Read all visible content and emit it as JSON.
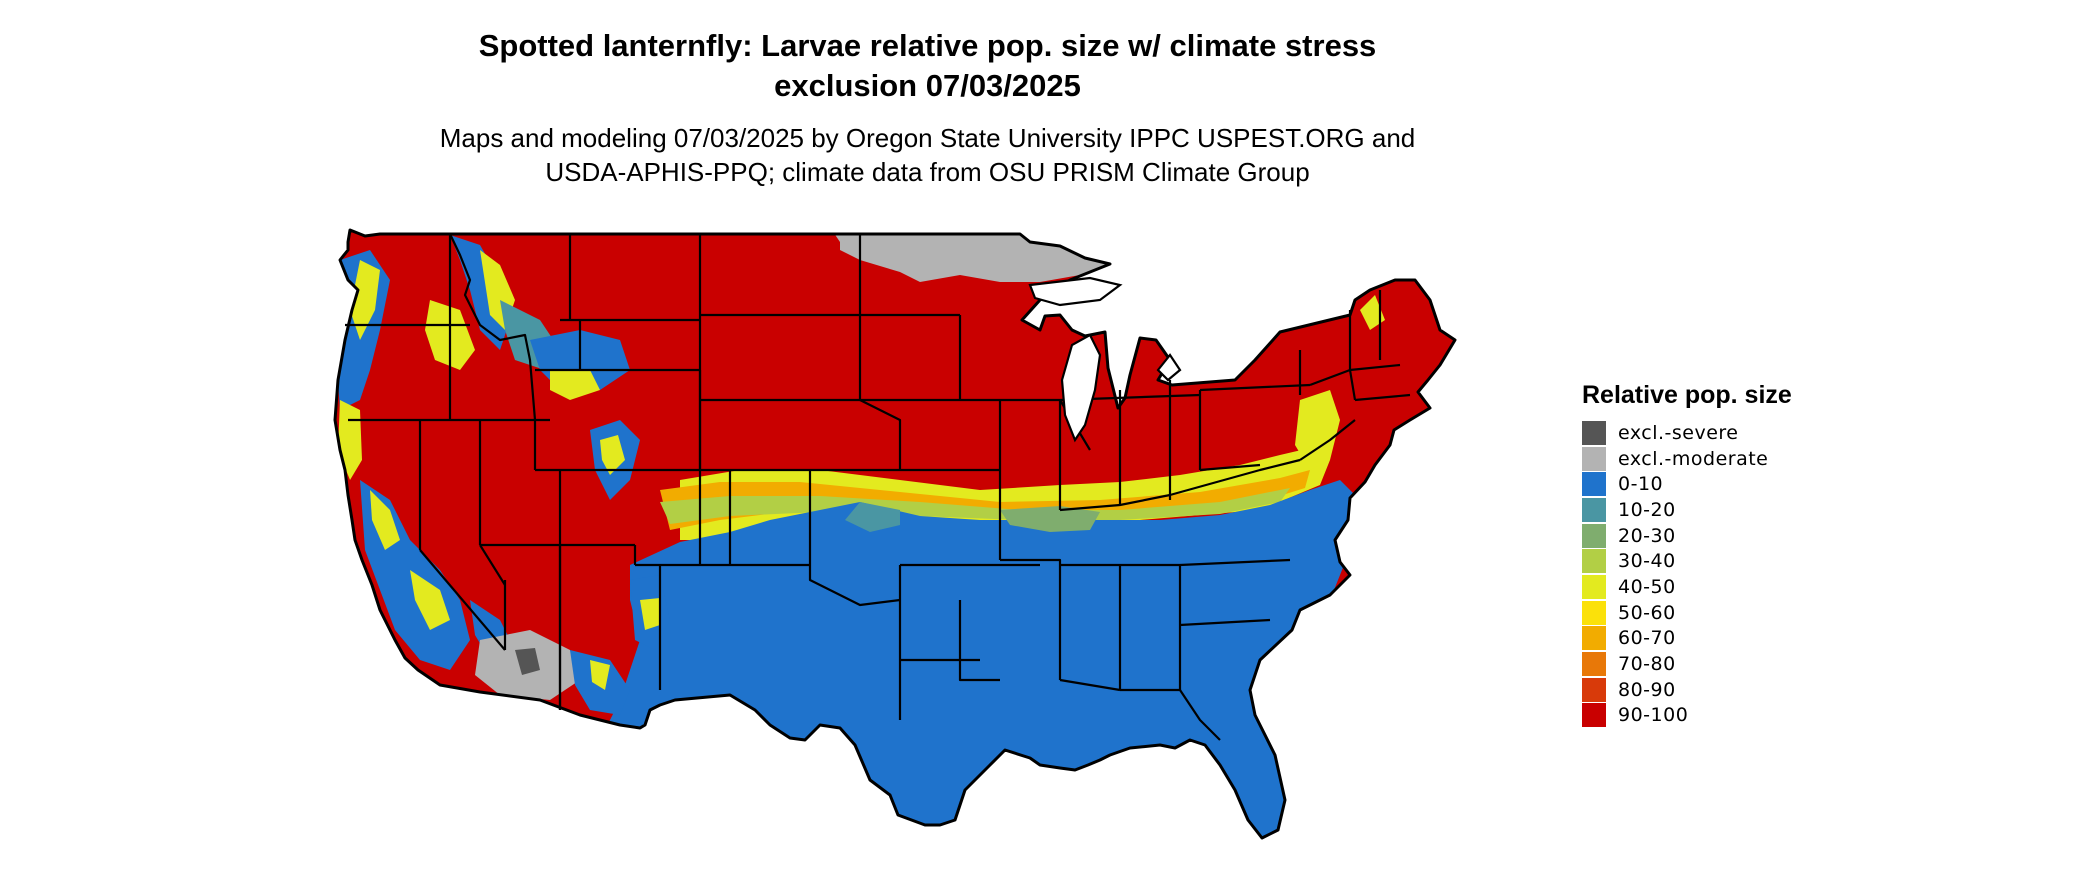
{
  "title_line1": "Spotted lanternfly: Larvae relative pop. size w/ climate stress",
  "title_line2": "exclusion 07/03/2025",
  "subtitle_line1": "Maps and modeling 07/03/2025 by Oregon State University IPPC USPEST.ORG and",
  "subtitle_line2": "USDA-APHIS-PPQ; climate data from OSU PRISM Climate Group",
  "legend": {
    "title": "Relative pop. size",
    "items": [
      {
        "label": "excl.-severe",
        "color": "#555555"
      },
      {
        "label": "excl.-moderate",
        "color": "#b3b3b3"
      },
      {
        "label": "0-10",
        "color": "#1f73cc"
      },
      {
        "label": "10-20",
        "color": "#4a96a3"
      },
      {
        "label": "20-30",
        "color": "#7fad6e"
      },
      {
        "label": "30-40",
        "color": "#b2cf45"
      },
      {
        "label": "40-50",
        "color": "#e3ea1f"
      },
      {
        "label": "50-60",
        "color": "#fbe10a"
      },
      {
        "label": "60-70",
        "color": "#f2ac00"
      },
      {
        "label": "70-80",
        "color": "#e87808"
      },
      {
        "label": "80-90",
        "color": "#d83a0a"
      },
      {
        "label": "90-100",
        "color": "#c90000"
      }
    ]
  }
}
